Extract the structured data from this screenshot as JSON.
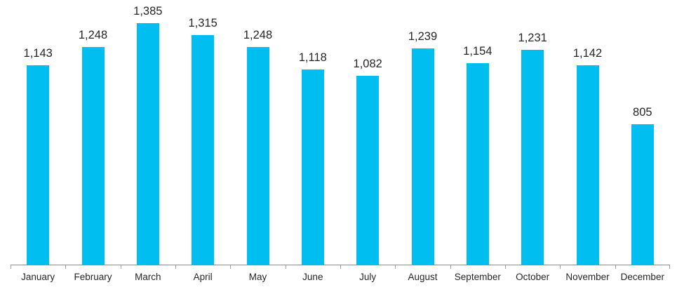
{
  "chart_data": {
    "type": "bar",
    "categories": [
      "January",
      "February",
      "March",
      "April",
      "May",
      "June",
      "July",
      "August",
      "September",
      "October",
      "November",
      "December"
    ],
    "values": [
      1143,
      1248,
      1385,
      1315,
      1248,
      1118,
      1082,
      1239,
      1154,
      1231,
      1142,
      805
    ],
    "value_labels": [
      "1,143",
      "1,248",
      "1,385",
      "1,315",
      "1,248",
      "1,118",
      "1,082",
      "1,239",
      "1,154",
      "1,231",
      "1,142",
      "805"
    ],
    "title": "",
    "xlabel": "",
    "ylabel": "",
    "ylim": [
      0,
      1385
    ],
    "grid": false,
    "legend": "none",
    "y_axis_visible": false,
    "data_labels_position": "above-bar",
    "colors": {
      "bar": "#00bff0",
      "axis_line": "#8c8c8c",
      "tick": "#a0a0a0",
      "text": "#262626",
      "background": "#ffffff"
    }
  }
}
